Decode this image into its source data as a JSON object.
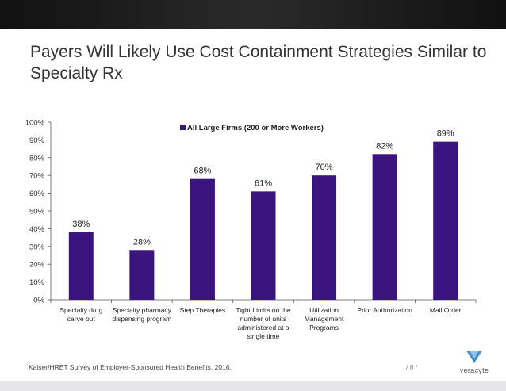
{
  "slide": {
    "title": "Payers Will Likely Use Cost Containment Strategies Similar to Specialty Rx",
    "source": "Kaiser/HRET Survey of Employer-Sponsored Health Benefits, 2016.",
    "page_number": "/ 8 /",
    "logo_text": "veracyte"
  },
  "colors": {
    "bar": "#3a1580",
    "logo_accent": "#4a90c8"
  },
  "chart_data": {
    "type": "bar",
    "categories": [
      [
        "Specialty drug",
        "carve out"
      ],
      [
        "Specialty pharmacy",
        "dispensing program"
      ],
      [
        "Step Therapies"
      ],
      [
        "Tight Limits on the",
        "number of units",
        "administered at a",
        "single time"
      ],
      [
        "Utilization",
        "Management",
        "Programs"
      ],
      [
        "Prior Authorization"
      ],
      [
        "Mail Order"
      ]
    ],
    "series": [
      {
        "name": "All Large Firms (200 or More Workers)",
        "values": [
          38,
          28,
          68,
          61,
          70,
          82,
          89
        ],
        "labels": [
          "38%",
          "28%",
          "68%",
          "61%",
          "70%",
          "82%",
          "89%"
        ]
      }
    ],
    "ylim": [
      0,
      100
    ],
    "yticks": [
      0,
      10,
      20,
      30,
      40,
      50,
      60,
      70,
      80,
      90,
      100
    ],
    "ytick_labels": [
      "0%",
      "10%",
      "20%",
      "30%",
      "40%",
      "50%",
      "60%",
      "70%",
      "80%",
      "90%",
      "100%"
    ],
    "grid": false,
    "legend": "top-center"
  }
}
